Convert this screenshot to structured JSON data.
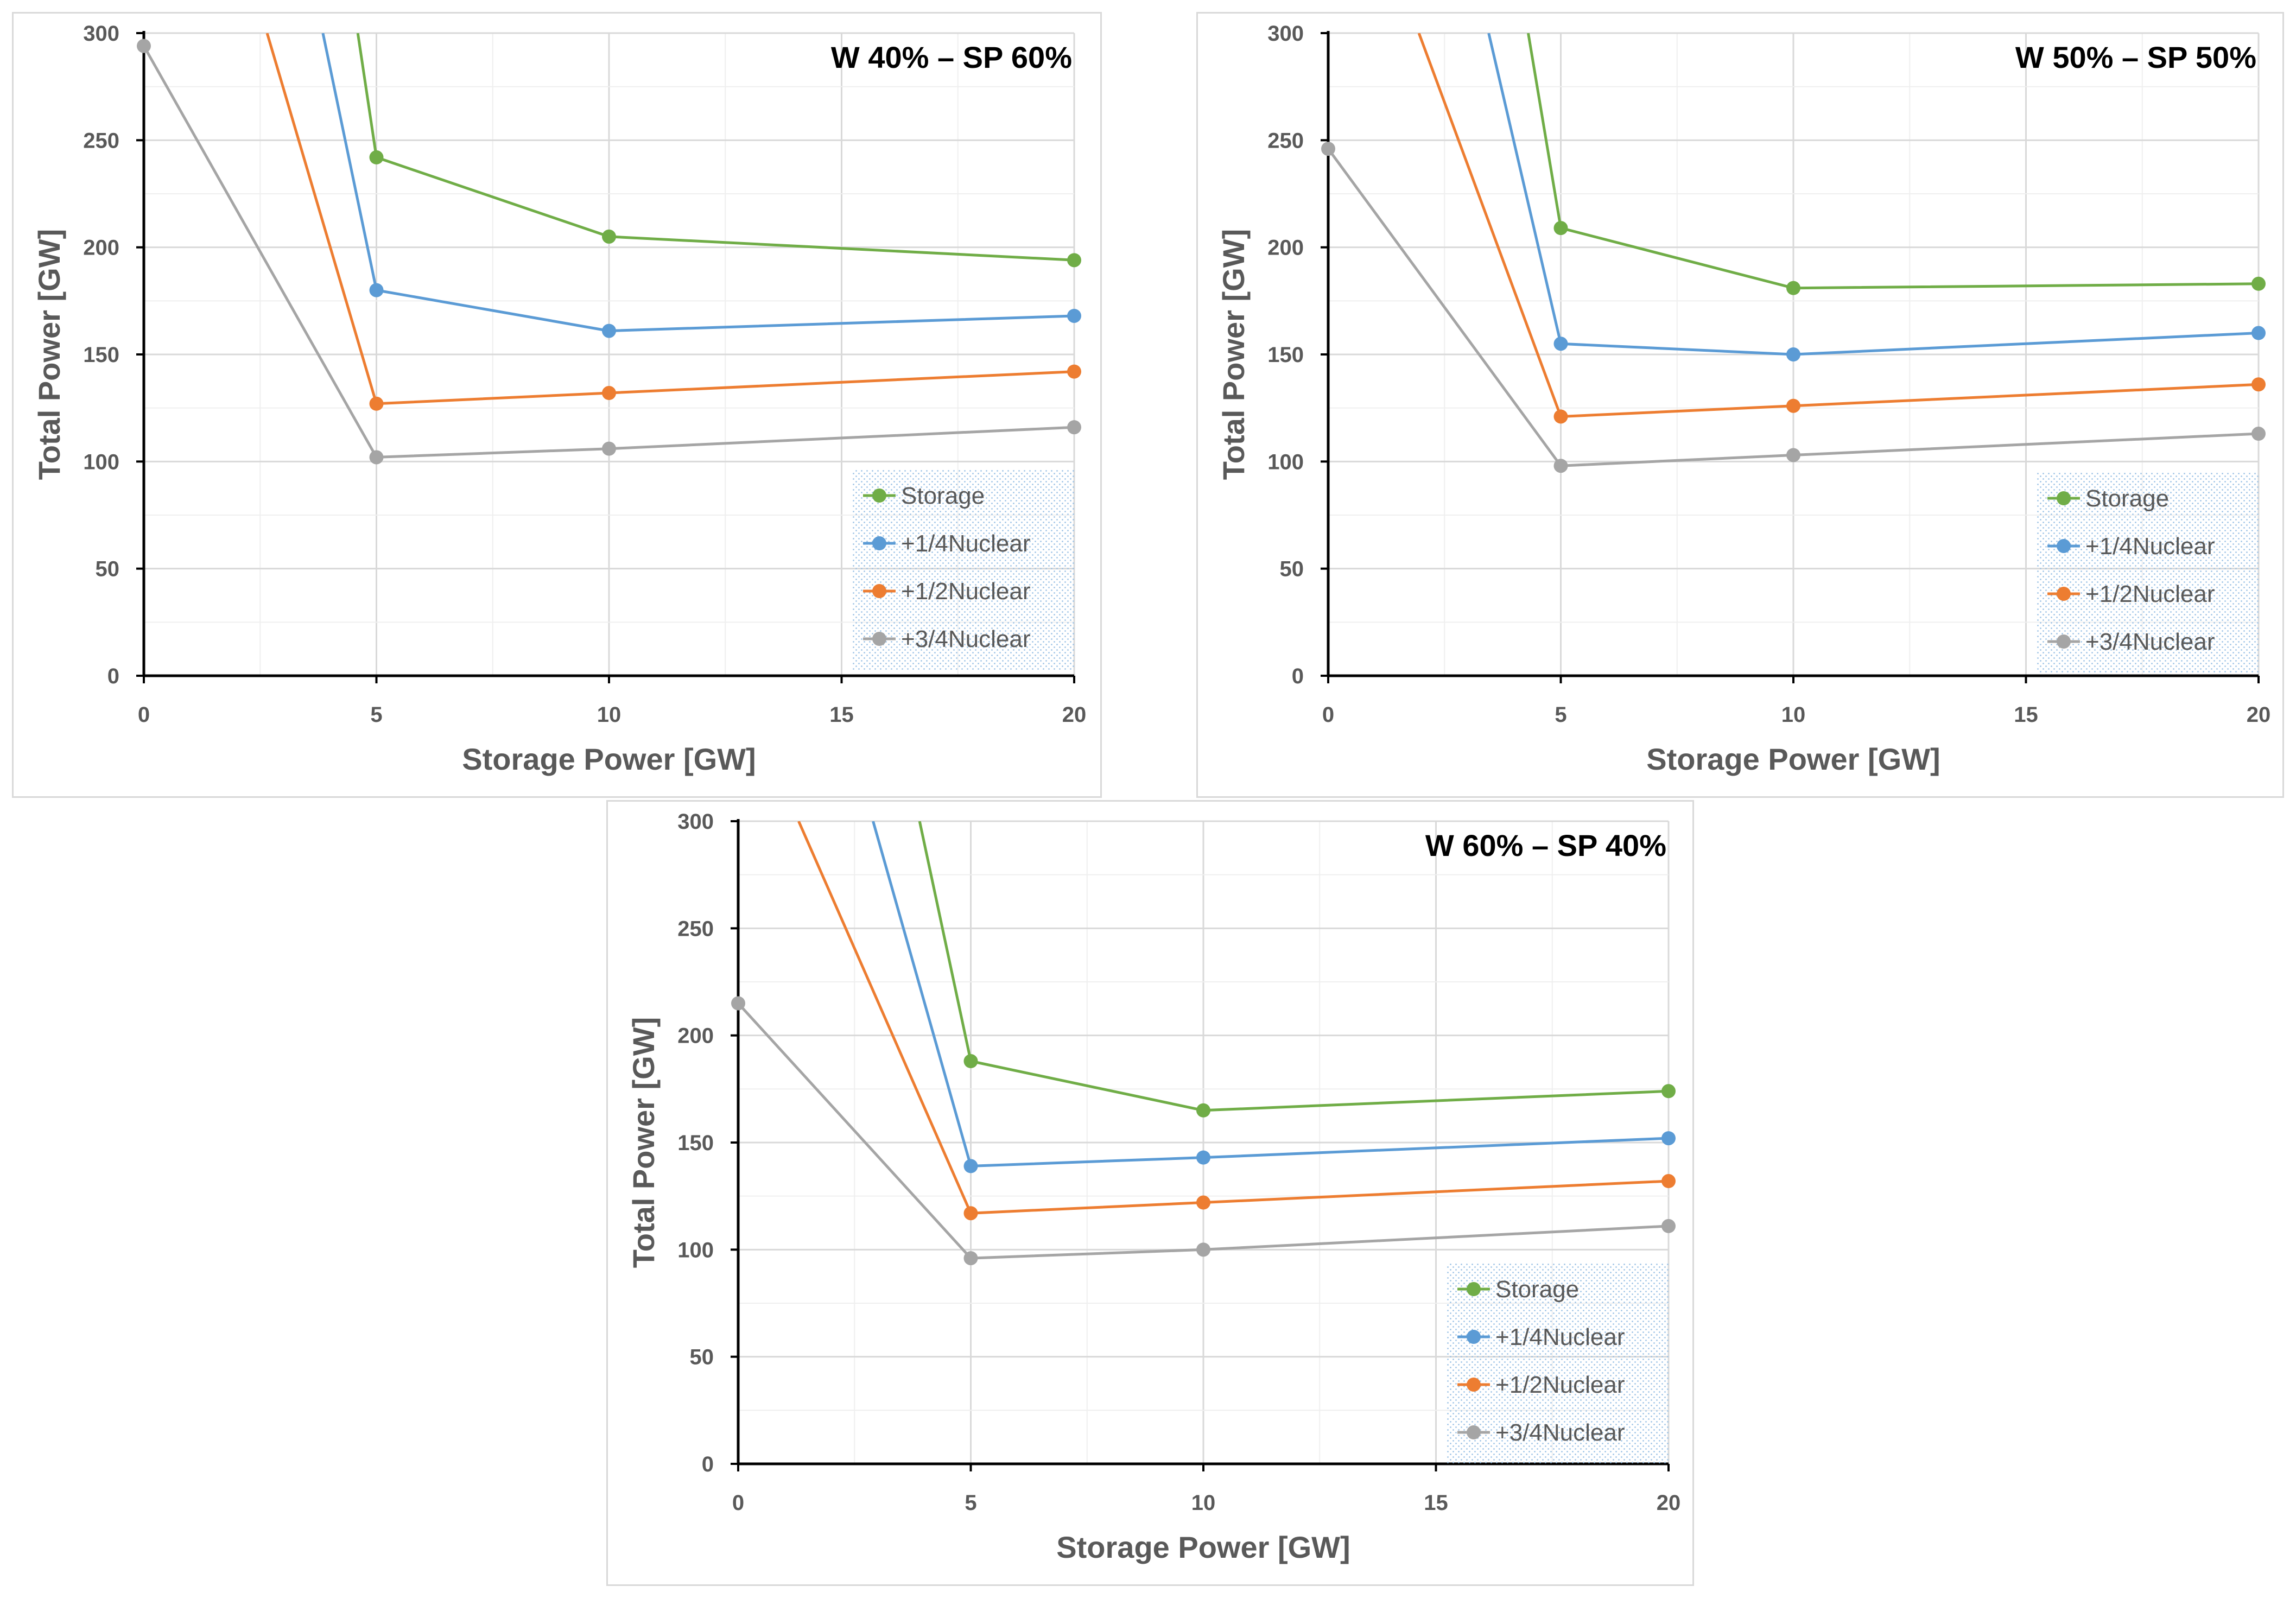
{
  "chart_data": [
    {
      "type": "line",
      "title": "W 40% – SP 60%",
      "xlabel": "Storage Power [GW]",
      "ylabel": "Total Power [GW]",
      "xlim": [
        0,
        20
      ],
      "ylim": [
        0,
        300
      ],
      "xticks": [
        0,
        5,
        10,
        15,
        20
      ],
      "yticks": [
        0,
        50,
        100,
        150,
        200,
        250,
        300
      ],
      "x_minor_step": 2.5,
      "y_minor_step": 25,
      "grid": true,
      "legend_position": "bottom-right",
      "series": [
        {
          "name": "Storage",
          "color": "#70ad47",
          "points": [
            [
              5,
              242
            ],
            [
              10,
              205
            ],
            [
              20,
              194
            ]
          ],
          "lead_in": [
            [
              4.6,
              300
            ]
          ]
        },
        {
          "name": "+1/4Nuclear",
          "color": "#5b9bd5",
          "points": [
            [
              5,
              180
            ],
            [
              10,
              161
            ],
            [
              20,
              168
            ]
          ],
          "lead_in": [
            [
              3.85,
              300
            ]
          ]
        },
        {
          "name": "+1/2Nuclear",
          "color": "#ed7d31",
          "points": [
            [
              5,
              127
            ],
            [
              10,
              132
            ],
            [
              20,
              142
            ]
          ],
          "lead_in": [
            [
              2.65,
              300
            ]
          ]
        },
        {
          "name": "+3/4Nuclear",
          "color": "#a5a5a5",
          "points": [
            [
              0,
              294
            ],
            [
              5,
              102
            ],
            [
              10,
              106
            ],
            [
              20,
              116
            ]
          ],
          "lead_in": []
        }
      ]
    },
    {
      "type": "line",
      "title": "W 50% – SP 50%",
      "xlabel": "Storage Power [GW]",
      "ylabel": "Total Power [GW]",
      "xlim": [
        0,
        20
      ],
      "ylim": [
        0,
        300
      ],
      "xticks": [
        0,
        5,
        10,
        15,
        20
      ],
      "yticks": [
        0,
        50,
        100,
        150,
        200,
        250,
        300
      ],
      "x_minor_step": 2.5,
      "y_minor_step": 25,
      "grid": true,
      "legend_position": "bottom-right",
      "series": [
        {
          "name": "Storage",
          "color": "#70ad47",
          "points": [
            [
              5,
              209
            ],
            [
              10,
              181
            ],
            [
              20,
              183
            ]
          ],
          "lead_in": [
            [
              4.3,
              300
            ]
          ]
        },
        {
          "name": "+1/4Nuclear",
          "color": "#5b9bd5",
          "points": [
            [
              5,
              155
            ],
            [
              10,
              150
            ],
            [
              20,
              160
            ]
          ],
          "lead_in": [
            [
              3.45,
              300
            ]
          ]
        },
        {
          "name": "+1/2Nuclear",
          "color": "#ed7d31",
          "points": [
            [
              5,
              121
            ],
            [
              10,
              126
            ],
            [
              20,
              136
            ]
          ],
          "lead_in": [
            [
              1.95,
              300
            ]
          ]
        },
        {
          "name": "+3/4Nuclear",
          "color": "#a5a5a5",
          "points": [
            [
              0,
              246
            ],
            [
              5,
              98
            ],
            [
              10,
              103
            ],
            [
              20,
              113
            ]
          ],
          "lead_in": []
        }
      ]
    },
    {
      "type": "line",
      "title": "W 60% – SP 40%",
      "xlabel": "Storage Power [GW]",
      "ylabel": "Total Power [GW]",
      "xlim": [
        0,
        20
      ],
      "ylim": [
        0,
        300
      ],
      "xticks": [
        0,
        5,
        10,
        15,
        20
      ],
      "yticks": [
        0,
        50,
        100,
        150,
        200,
        250,
        300
      ],
      "x_minor_step": 2.5,
      "y_minor_step": 25,
      "grid": true,
      "legend_position": "bottom-right",
      "series": [
        {
          "name": "Storage",
          "color": "#70ad47",
          "points": [
            [
              5,
              188
            ],
            [
              10,
              165
            ],
            [
              20,
              174
            ]
          ],
          "lead_in": [
            [
              3.9,
              300
            ]
          ]
        },
        {
          "name": "+1/4Nuclear",
          "color": "#5b9bd5",
          "points": [
            [
              5,
              139
            ],
            [
              10,
              143
            ],
            [
              20,
              152
            ]
          ],
          "lead_in": [
            [
              2.9,
              300
            ]
          ]
        },
        {
          "name": "+1/2Nuclear",
          "color": "#ed7d31",
          "points": [
            [
              5,
              117
            ],
            [
              10,
              122
            ],
            [
              20,
              132
            ]
          ],
          "lead_in": [
            [
              1.3,
              300
            ]
          ]
        },
        {
          "name": "+3/4Nuclear",
          "color": "#a5a5a5",
          "points": [
            [
              0,
              215
            ],
            [
              5,
              96
            ],
            [
              10,
              100
            ],
            [
              20,
              111
            ]
          ],
          "lead_in": []
        }
      ]
    }
  ]
}
